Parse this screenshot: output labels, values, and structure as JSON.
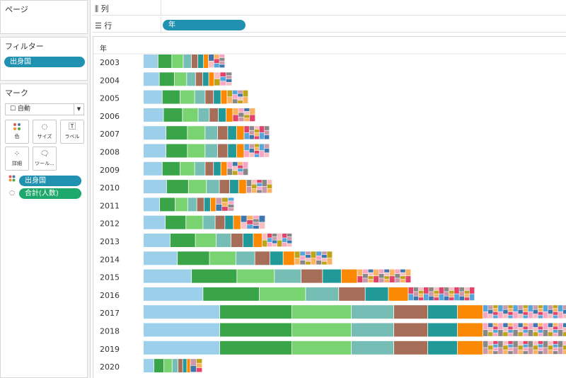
{
  "pages": {
    "title": "ページ"
  },
  "columns_shelf": {
    "label": "列"
  },
  "rows_shelf": {
    "label": "行",
    "pill": "年"
  },
  "filters": {
    "title": "フィルター",
    "pill": "出身国"
  },
  "marks": {
    "title": "マーク",
    "mark_type": "自動",
    "buttons": {
      "color": "色",
      "size": "サイズ",
      "label": "ラベル",
      "detail": "詳細",
      "tooltip": "ツール..."
    },
    "pills": [
      {
        "label": "出身国",
        "role": "color"
      },
      {
        "label": "合計(人数)",
        "role": "size"
      }
    ]
  },
  "chart_data": {
    "type": "bar",
    "subtype": "stacked-horizontal (treemap-like segments by country)",
    "row_header": "年",
    "categories": [
      "2003",
      "2004",
      "2005",
      "2006",
      "2007",
      "2008",
      "2009",
      "2010",
      "2011",
      "2012",
      "2013",
      "2014",
      "2015",
      "2016",
      "2017",
      "2018",
      "2019",
      "2020"
    ],
    "totals_relative": [
      115,
      125,
      148,
      158,
      178,
      178,
      148,
      182,
      128,
      172,
      210,
      267,
      378,
      468,
      600,
      600,
      600,
      83
    ],
    "xlabel": "",
    "ylabel": "年",
    "legend": "none",
    "grid": false
  },
  "palette": [
    "#9ccfea",
    "#3aa548",
    "#79d371",
    "#76beb5",
    "#a66e58",
    "#219998",
    "#fb8903",
    "#3f76ab",
    "#f7bfc2",
    "#bfa419",
    "#fbb361",
    "#e3436b",
    "#55a6db",
    "#f9a6c4",
    "#888",
    "#c9a"
  ]
}
